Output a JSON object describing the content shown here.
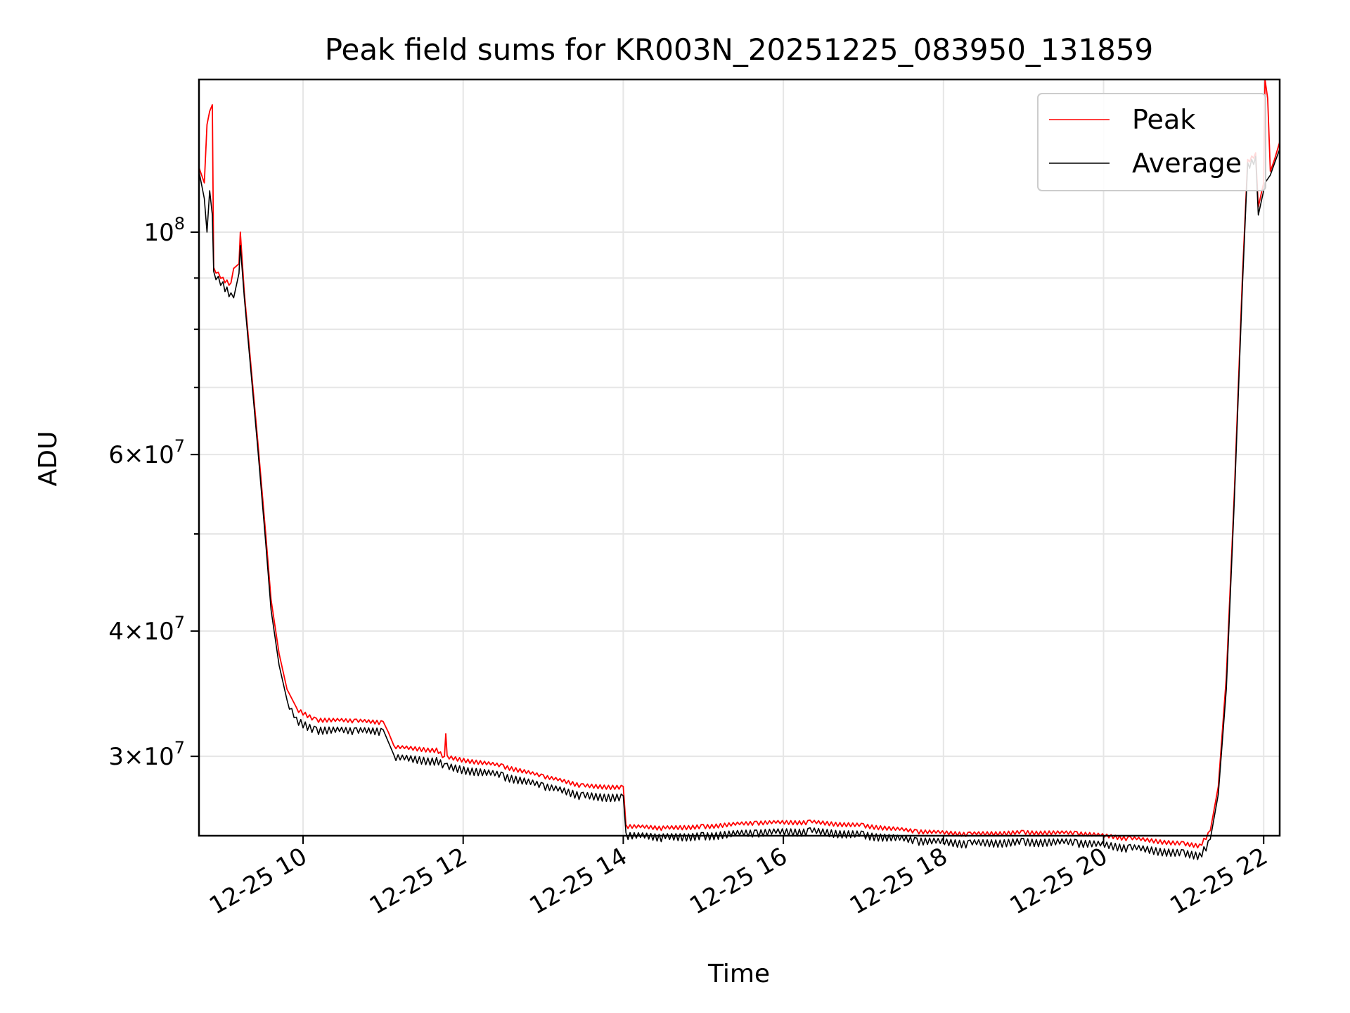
{
  "chart_data": {
    "type": "line",
    "title": "Peak field sums for KR003N_20251225_083950_131859",
    "xlabel": "Time",
    "ylabel": "ADU",
    "yscale": "log",
    "xlim": [
      "2025-12-25 08:42",
      "2025-12-25 22:12"
    ],
    "ylim": [
      25000000,
      142000000
    ],
    "grid": true,
    "legend_position": "top-right",
    "x_ticks": [
      {
        "value": "2025-12-25 10:00",
        "label": "12-25 10"
      },
      {
        "value": "2025-12-25 12:00",
        "label": "12-25 12"
      },
      {
        "value": "2025-12-25 14:00",
        "label": "12-25 14"
      },
      {
        "value": "2025-12-25 16:00",
        "label": "12-25 16"
      },
      {
        "value": "2025-12-25 18:00",
        "label": "12-25 18"
      },
      {
        "value": "2025-12-25 20:00",
        "label": "12-25 20"
      },
      {
        "value": "2025-12-25 22:00",
        "label": "12-25 22"
      }
    ],
    "y_ticks_major": [
      {
        "value": 100000000,
        "base": "10",
        "exp": "8",
        "mant": ""
      },
      {
        "value": 60000000,
        "base": "10",
        "exp": "7",
        "mant": "6"
      },
      {
        "value": 40000000,
        "base": "10",
        "exp": "7",
        "mant": "4"
      },
      {
        "value": 30000000,
        "base": "10",
        "exp": "7",
        "mant": "3"
      }
    ],
    "y_ticks_minor": [
      90000000,
      80000000,
      70000000,
      50000000
    ],
    "series": [
      {
        "name": "Peak",
        "color": "#ff0000",
        "points": [
          [
            "2025-12-25 08:42",
            116000000
          ],
          [
            "2025-12-25 08:46",
            112000000
          ],
          [
            "2025-12-25 08:48",
            128000000
          ],
          [
            "2025-12-25 08:50",
            132000000
          ],
          [
            "2025-12-25 08:52",
            134000000
          ],
          [
            "2025-12-25 08:53",
            92000000
          ],
          [
            "2025-12-25 09:00",
            90000000
          ],
          [
            "2025-12-25 09:06",
            89000000
          ],
          [
            "2025-12-25 09:08",
            92000000
          ],
          [
            "2025-12-25 09:12",
            93000000
          ],
          [
            "2025-12-25 09:13",
            100000000
          ],
          [
            "2025-12-25 09:16",
            87000000
          ],
          [
            "2025-12-25 09:20",
            76000000
          ],
          [
            "2025-12-25 09:26",
            62000000
          ],
          [
            "2025-12-25 09:32",
            50000000
          ],
          [
            "2025-12-25 09:36",
            43000000
          ],
          [
            "2025-12-25 09:42",
            38000000
          ],
          [
            "2025-12-25 09:48",
            35000000
          ],
          [
            "2025-12-25 09:55",
            33500000
          ],
          [
            "2025-12-25 10:10",
            32700000
          ],
          [
            "2025-12-25 10:40",
            32600000
          ],
          [
            "2025-12-25 11:00",
            32500000
          ],
          [
            "2025-12-25 11:04",
            31700000
          ],
          [
            "2025-12-25 11:08",
            30700000
          ],
          [
            "2025-12-25 11:40",
            30500000
          ],
          [
            "2025-12-25 11:46",
            30000000
          ],
          [
            "2025-12-25 11:47",
            31600000
          ],
          [
            "2025-12-25 11:48",
            30000000
          ],
          [
            "2025-12-25 12:30",
            29400000
          ],
          [
            "2025-12-25 13:00",
            28700000
          ],
          [
            "2025-12-25 13:30",
            28100000
          ],
          [
            "2025-12-25 14:00",
            28000000
          ],
          [
            "2025-12-25 14:02",
            25600000
          ],
          [
            "2025-12-25 14:30",
            25500000
          ],
          [
            "2025-12-25 15:00",
            25600000
          ],
          [
            "2025-12-25 15:40",
            25800000
          ],
          [
            "2025-12-25 16:20",
            25850000
          ],
          [
            "2025-12-25 17:00",
            25650000
          ],
          [
            "2025-12-25 17:40",
            25300000
          ],
          [
            "2025-12-25 18:20",
            25150000
          ],
          [
            "2025-12-25 19:00",
            25250000
          ],
          [
            "2025-12-25 19:40",
            25200000
          ],
          [
            "2025-12-25 20:20",
            24900000
          ],
          [
            "2025-12-25 21:00",
            24600000
          ],
          [
            "2025-12-25 21:12",
            24500000
          ],
          [
            "2025-12-25 21:20",
            25300000
          ],
          [
            "2025-12-25 21:26",
            28000000
          ],
          [
            "2025-12-25 21:32",
            36000000
          ],
          [
            "2025-12-25 21:38",
            55000000
          ],
          [
            "2025-12-25 21:44",
            90000000
          ],
          [
            "2025-12-25 21:48",
            118000000
          ],
          [
            "2025-12-25 21:54",
            120000000
          ],
          [
            "2025-12-25 21:56",
            106000000
          ],
          [
            "2025-12-25 22:00",
            112000000
          ],
          [
            "2025-12-25 22:01",
            142000000
          ],
          [
            "2025-12-25 22:03",
            136000000
          ],
          [
            "2025-12-25 22:05",
            115000000
          ],
          [
            "2025-12-25 22:08",
            118000000
          ],
          [
            "2025-12-25 22:12",
            123000000
          ]
        ]
      },
      {
        "name": "Average",
        "color": "#000000",
        "points": [
          [
            "2025-12-25 08:42",
            115000000
          ],
          [
            "2025-12-25 08:46",
            108000000
          ],
          [
            "2025-12-25 08:48",
            100000000
          ],
          [
            "2025-12-25 08:50",
            110000000
          ],
          [
            "2025-12-25 08:52",
            104000000
          ],
          [
            "2025-12-25 08:53",
            91000000
          ],
          [
            "2025-12-25 09:00",
            89000000
          ],
          [
            "2025-12-25 09:06",
            87000000
          ],
          [
            "2025-12-25 09:08",
            86000000
          ],
          [
            "2025-12-25 09:12",
            91000000
          ],
          [
            "2025-12-25 09:13",
            97000000
          ],
          [
            "2025-12-25 09:16",
            86000000
          ],
          [
            "2025-12-25 09:20",
            75000000
          ],
          [
            "2025-12-25 09:26",
            61000000
          ],
          [
            "2025-12-25 09:32",
            49000000
          ],
          [
            "2025-12-25 09:36",
            42000000
          ],
          [
            "2025-12-25 09:42",
            37000000
          ],
          [
            "2025-12-25 09:48",
            34000000
          ],
          [
            "2025-12-25 09:55",
            32700000
          ],
          [
            "2025-12-25 10:10",
            32000000
          ],
          [
            "2025-12-25 10:40",
            31900000
          ],
          [
            "2025-12-25 11:00",
            31900000
          ],
          [
            "2025-12-25 11:04",
            31000000
          ],
          [
            "2025-12-25 11:08",
            30000000
          ],
          [
            "2025-12-25 11:40",
            29800000
          ],
          [
            "2025-12-25 11:46",
            29500000
          ],
          [
            "2025-12-25 11:47",
            29500000
          ],
          [
            "2025-12-25 11:48",
            29400000
          ],
          [
            "2025-12-25 12:30",
            28800000
          ],
          [
            "2025-12-25 13:00",
            28100000
          ],
          [
            "2025-12-25 13:30",
            27500000
          ],
          [
            "2025-12-25 14:00",
            27400000
          ],
          [
            "2025-12-25 14:02",
            25100000
          ],
          [
            "2025-12-25 14:30",
            25000000
          ],
          [
            "2025-12-25 15:00",
            25100000
          ],
          [
            "2025-12-25 15:40",
            25250000
          ],
          [
            "2025-12-25 16:20",
            25350000
          ],
          [
            "2025-12-25 17:00",
            25150000
          ],
          [
            "2025-12-25 17:40",
            24800000
          ],
          [
            "2025-12-25 18:20",
            24650000
          ],
          [
            "2025-12-25 19:00",
            24750000
          ],
          [
            "2025-12-25 19:40",
            24700000
          ],
          [
            "2025-12-25 20:20",
            24400000
          ],
          [
            "2025-12-25 21:00",
            24100000
          ],
          [
            "2025-12-25 21:12",
            24000000
          ],
          [
            "2025-12-25 21:20",
            24800000
          ],
          [
            "2025-12-25 21:26",
            27500000
          ],
          [
            "2025-12-25 21:32",
            35000000
          ],
          [
            "2025-12-25 21:38",
            54000000
          ],
          [
            "2025-12-25 21:44",
            88000000
          ],
          [
            "2025-12-25 21:48",
            117000000
          ],
          [
            "2025-12-25 21:54",
            119000000
          ],
          [
            "2025-12-25 21:56",
            104000000
          ],
          [
            "2025-12-25 22:00",
            110000000
          ],
          [
            "2025-12-25 22:01",
            112000000
          ],
          [
            "2025-12-25 22:03",
            113000000
          ],
          [
            "2025-12-25 22:05",
            114000000
          ],
          [
            "2025-12-25 22:08",
            117000000
          ],
          [
            "2025-12-25 22:12",
            121000000
          ]
        ]
      }
    ]
  }
}
